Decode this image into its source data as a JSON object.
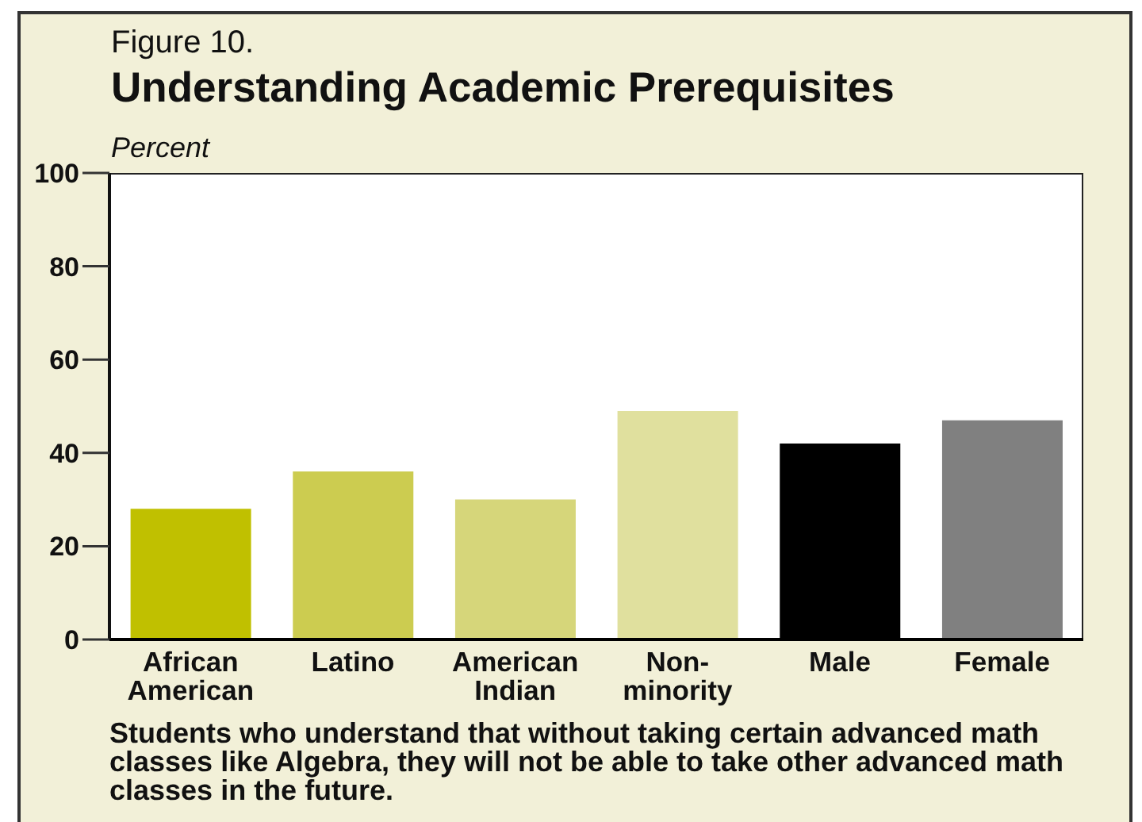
{
  "chart_data": {
    "type": "bar",
    "subtitle": "Figure 10.",
    "title": "Understanding Academic Prerequisites",
    "ylabel": "Percent",
    "categories": [
      "African American",
      "Latino",
      "American Indian",
      "Non-minority",
      "Male",
      "Female"
    ],
    "values": [
      28,
      36,
      30,
      49,
      42,
      47
    ],
    "colors": [
      "#c0c000",
      "#cccc50",
      "#d6d67a",
      "#e0e09e",
      "#000000",
      "#808080"
    ],
    "ylim": [
      0,
      100
    ],
    "yticks": [
      0,
      20,
      40,
      60,
      80,
      100
    ],
    "annotations": [
      "Students who understand that without taking certain advanced math classes like Algebra, they will not be able to take other advanced math classes in the future."
    ]
  }
}
